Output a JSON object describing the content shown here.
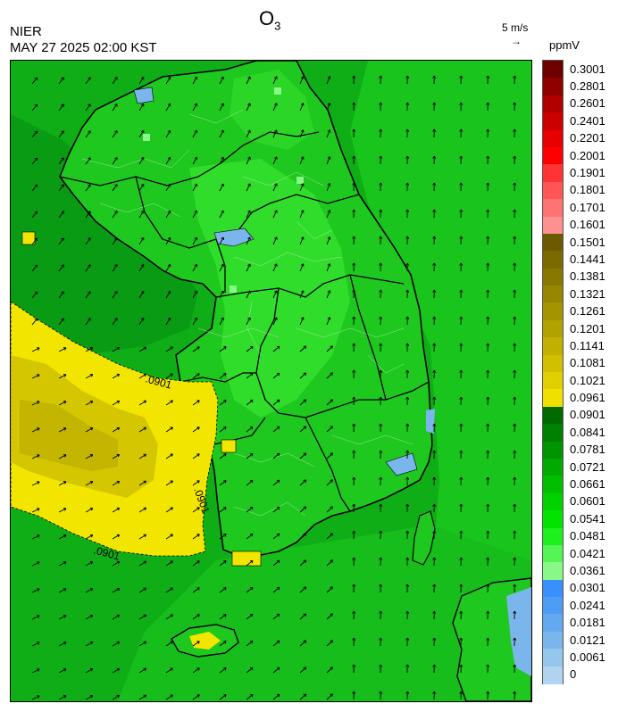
{
  "header": {
    "agency": "NIER",
    "datetime": "MAY 27 2025 02:00 KST",
    "title_main": "O",
    "title_sub": "3",
    "wind_reference": "5 m/s",
    "wind_arrow_glyph": "→"
  },
  "legend": {
    "unit": "ppmV",
    "levels": [
      {
        "label": "0.3001",
        "color": "#6e0000"
      },
      {
        "label": "0.2801",
        "color": "#910000"
      },
      {
        "label": "0.2601",
        "color": "#b00000"
      },
      {
        "label": "0.2401",
        "color": "#cc0000"
      },
      {
        "label": "0.2201",
        "color": "#e60000"
      },
      {
        "label": "0.2001",
        "color": "#ff0000"
      },
      {
        "label": "0.1901",
        "color": "#ff3333"
      },
      {
        "label": "0.1801",
        "color": "#ff5555"
      },
      {
        "label": "0.1701",
        "color": "#ff7373"
      },
      {
        "label": "0.1601",
        "color": "#ff9090"
      },
      {
        "label": "0.1501",
        "color": "#6b5a00"
      },
      {
        "label": "0.1441",
        "color": "#7a6a00"
      },
      {
        "label": "0.1381",
        "color": "#887800"
      },
      {
        "label": "0.1321",
        "color": "#968600"
      },
      {
        "label": "0.1261",
        "color": "#a49400"
      },
      {
        "label": "0.1201",
        "color": "#b2a200"
      },
      {
        "label": "0.1141",
        "color": "#c0b000"
      },
      {
        "label": "0.1081",
        "color": "#d0c000"
      },
      {
        "label": "0.1021",
        "color": "#e0d000"
      },
      {
        "label": "0.0961",
        "color": "#f0e000"
      },
      {
        "label": "0.0901",
        "color": "#006a00"
      },
      {
        "label": "0.0841",
        "color": "#008000"
      },
      {
        "label": "0.0781",
        "color": "#009500"
      },
      {
        "label": "0.0721",
        "color": "#00aa00"
      },
      {
        "label": "0.0661",
        "color": "#00be00"
      },
      {
        "label": "0.0601",
        "color": "#00d200"
      },
      {
        "label": "0.0541",
        "color": "#00e400"
      },
      {
        "label": "0.0481",
        "color": "#1ef01e"
      },
      {
        "label": "0.0421",
        "color": "#55f555"
      },
      {
        "label": "0.0361",
        "color": "#88f888"
      },
      {
        "label": "0.0301",
        "color": "#3a8fff"
      },
      {
        "label": "0.0241",
        "color": "#4f9cf5"
      },
      {
        "label": "0.0181",
        "color": "#64a9f0"
      },
      {
        "label": "0.0121",
        "color": "#7ab6ec"
      },
      {
        "label": "0.0061",
        "color": "#95c6ee"
      },
      {
        "label": "0",
        "color": "#b0d4f0"
      }
    ]
  },
  "map": {
    "contour_labels": [
      ".0901",
      ".0901",
      ".0901"
    ],
    "colors": {
      "sea_green": "#0fae17",
      "sea_dark": "#0a9b14",
      "land_green": "#1ec81e",
      "land_bright": "#30dd2a",
      "east_sea": "#19c41c",
      "yellow_high": "#f2e600",
      "yellow_core": "#c9bb00",
      "blue_low": "#7ab6ec"
    }
  }
}
